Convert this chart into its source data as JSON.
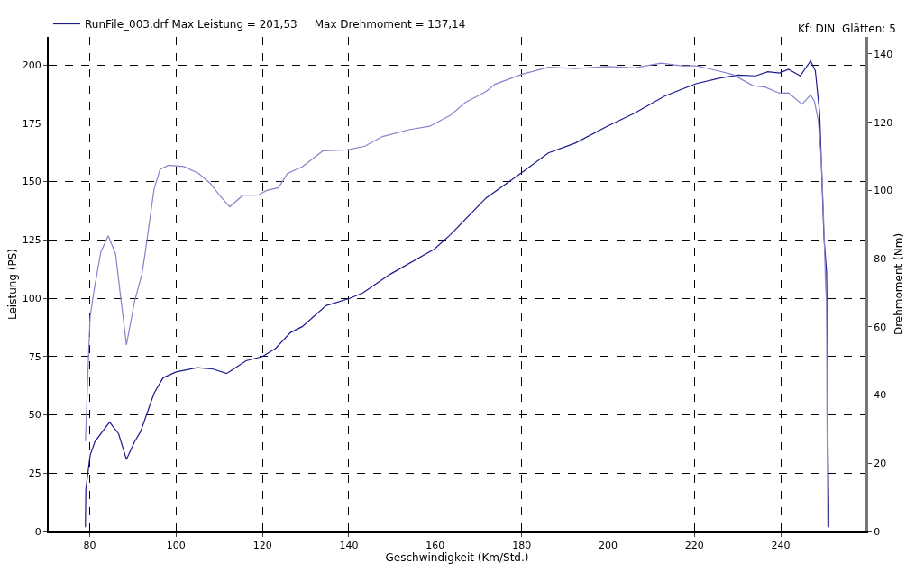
{
  "chart_data": {
    "type": "line",
    "xlabel": "Geschwindigkeit (Km/Std.)",
    "ylabel": "Leistung (PS)",
    "y2label": "Drehmoment (Nm)",
    "annotations": [
      "Kf: DIN  Glätten: 5"
    ],
    "xlim": [
      70.5,
      259.6
    ],
    "xticks": [
      80,
      100,
      120,
      140,
      160,
      180,
      200,
      220,
      240
    ],
    "ylim": [
      0,
      212
    ],
    "yticks": [
      0,
      25,
      50,
      75,
      100,
      125,
      150,
      175,
      200
    ],
    "y2lim": [
      0,
      145
    ],
    "y2ticks": [
      0,
      20,
      40,
      60,
      80,
      100,
      120,
      140
    ],
    "grid": true,
    "legend": "top left",
    "series": [
      {
        "name": "RunFile_003.drf Max Leistung = 201,53     Max Drehmoment = 137,14",
        "color": "#1a1a8c",
        "x": [
          79.0,
          79.1,
          80.1,
          81.2,
          84.6,
          86.7,
          88.5,
          90.4,
          91.8,
          94.9,
          97.0,
          100,
          104.9,
          108.6,
          111.7,
          116.2,
          120,
          123.0,
          126.5,
          129.2,
          134.7,
          140.2,
          143.3,
          149.5,
          159.8,
          163.5,
          171.8,
          180.0,
          186.2,
          192.4,
          199.9,
          206.1,
          213.0,
          217.1,
          220.5,
          226.0,
          230.1,
          234.2,
          237.0,
          239.7,
          241.8,
          244.5,
          246.9,
          248.0,
          249.0,
          250.0,
          250.6,
          250.7,
          250.9,
          251.1,
          251.1
        ],
        "values": [
          1.8,
          18,
          32.7,
          38.5,
          46.9,
          41.8,
          30.9,
          38.5,
          42.9,
          59.3,
          65.9,
          68.4,
          70.2,
          69.6,
          67.7,
          73.2,
          75,
          78.4,
          85.3,
          87.8,
          96.8,
          99.9,
          102.3,
          110.2,
          121.1,
          127.2,
          143,
          153.8,
          162.3,
          166.5,
          173.8,
          179.3,
          186.5,
          189.6,
          192,
          194.4,
          195.6,
          195.3,
          197.1,
          196.5,
          198.1,
          195.3,
          201.7,
          197.5,
          179.3,
          125.9,
          111.4,
          98.1,
          41,
          10.9,
          1.8
        ]
      },
      {
        "color": "#8484cc",
        "axis": "y2",
        "x": [
          79.0,
          79.3,
          79.8,
          80.1,
          81.0,
          82.6,
          84.3,
          86.0,
          87.0,
          88.5,
          90.4,
          92.1,
          92.8,
          94.9,
          96.3,
          98.3,
          101.8,
          105.2,
          107.9,
          110,
          112.4,
          115.5,
          118.9,
          121.0,
          123.7,
          125.8,
          129.2,
          134.0,
          139.5,
          143.6,
          147.8,
          153.9,
          158.7,
          163.5,
          166.9,
          171.8,
          173.8,
          180,
          186.2,
          192.4,
          199.9,
          206.1,
          212.3,
          217.1,
          220.5,
          225.3,
          228.8,
          233.6,
          236.3,
          239.7,
          241.8,
          244.9,
          246.9,
          247.8,
          248.7,
          249.4,
          249.9,
          250.4,
          250.6,
          250.7,
          250.9
        ],
        "values": [
          26.5,
          36.4,
          53.9,
          63.0,
          70.7,
          82.1,
          86.7,
          81.3,
          70.5,
          54.7,
          67.6,
          75.5,
          81.3,
          100.4,
          106.2,
          107.4,
          107,
          105,
          102.1,
          98.7,
          95.2,
          98.6,
          98.6,
          100,
          100.8,
          105,
          106.9,
          111.6,
          111.9,
          112.9,
          115.8,
          117.8,
          118.8,
          122,
          125.7,
          129,
          131.1,
          134,
          136.1,
          135.7,
          136.3,
          135.9,
          137.3,
          136.5,
          136.5,
          135.1,
          134,
          130.7,
          130.3,
          128.5,
          128.6,
          125.3,
          128,
          126.1,
          120.3,
          108.7,
          92.1,
          71.3,
          67.3,
          34,
          1.6
        ]
      }
    ]
  }
}
